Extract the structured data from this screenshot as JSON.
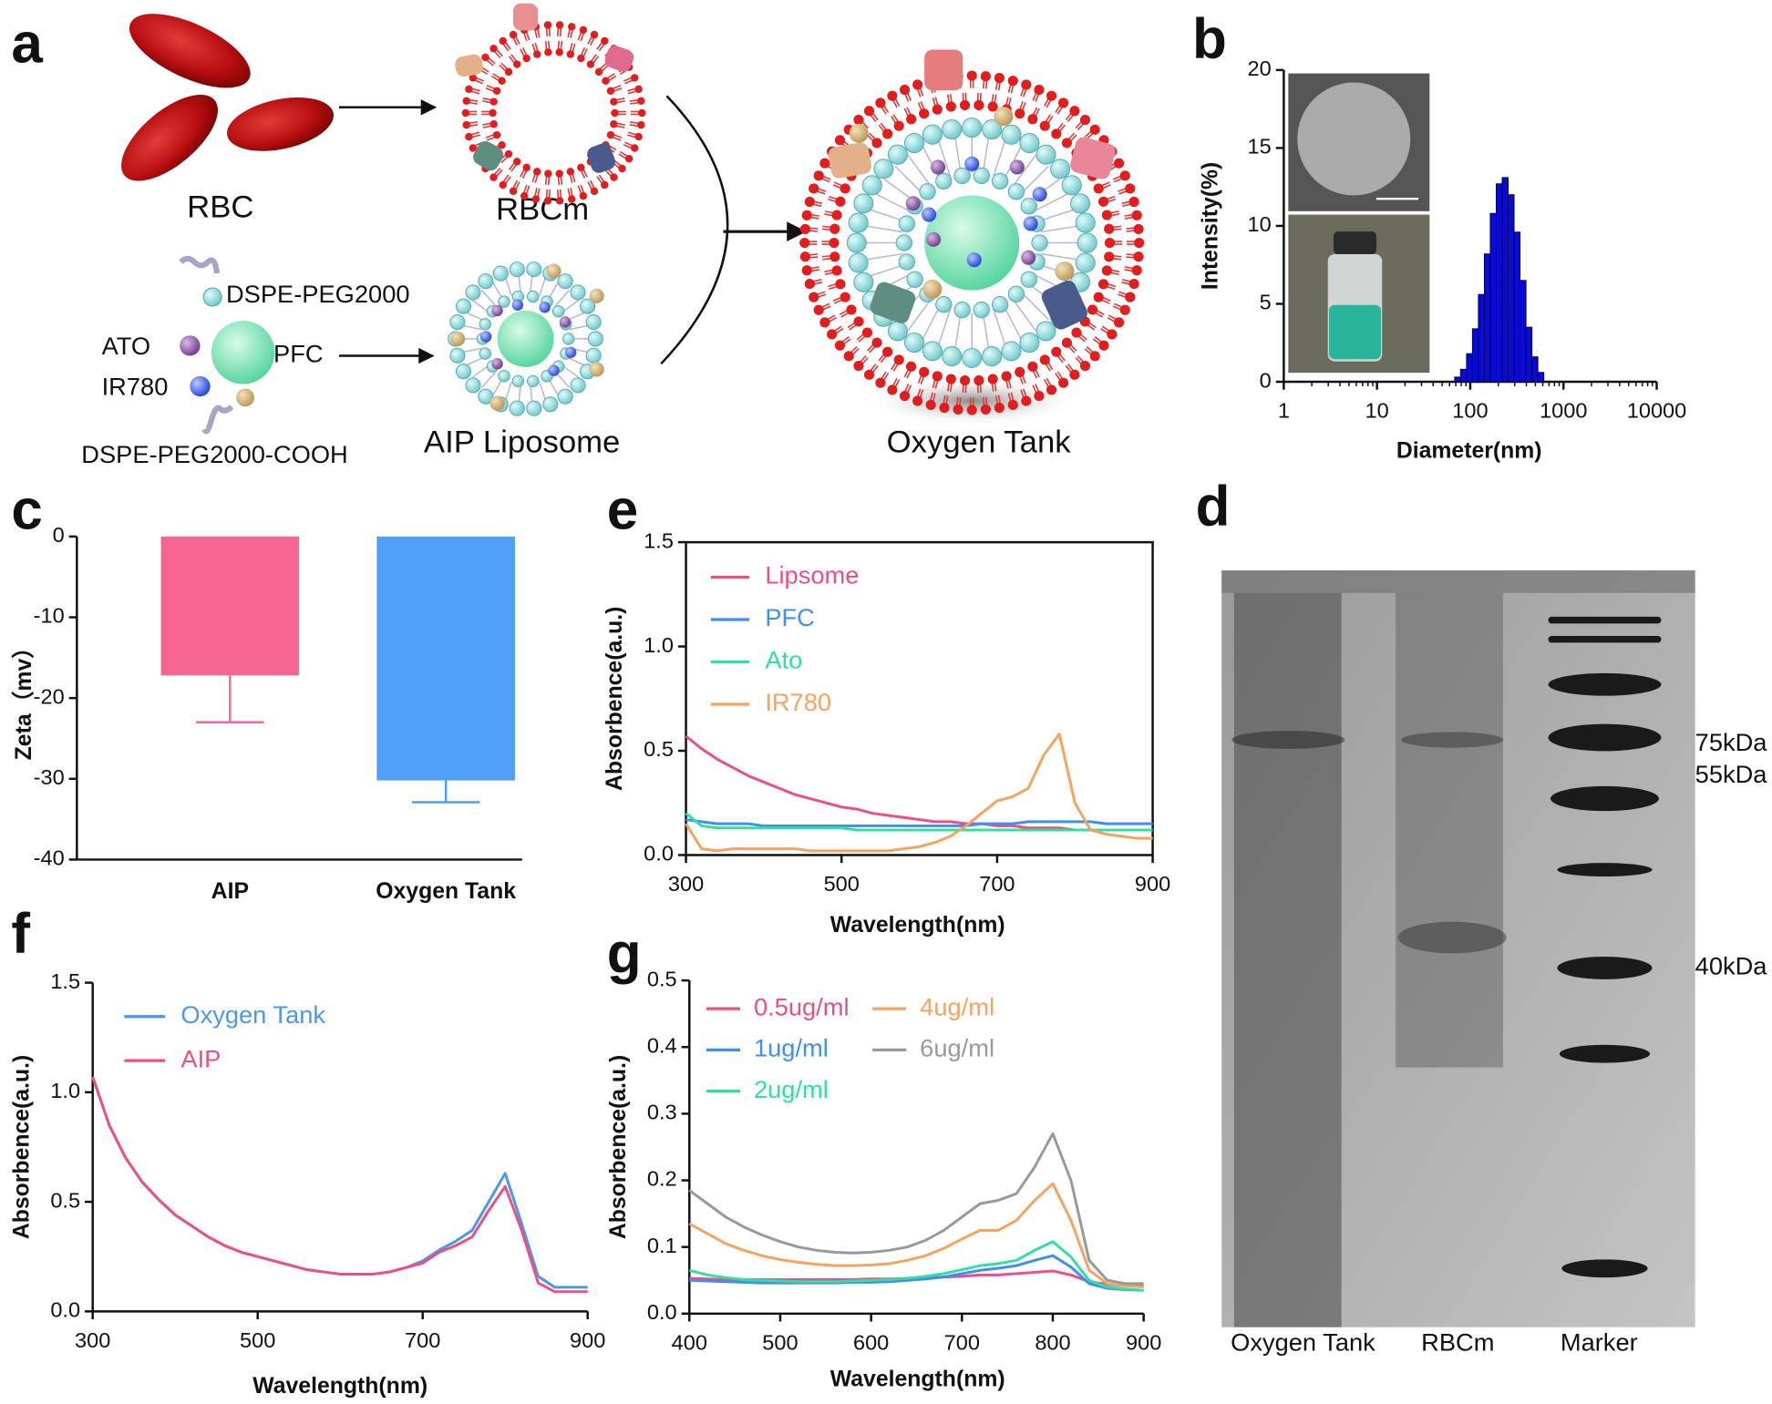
{
  "diagram": {
    "panel": "a",
    "rbc": "RBC",
    "rbcm": "RBCm",
    "dspe": "DSPE-PEG2000",
    "ato": "ATO",
    "pfc": "PFC",
    "ir780": "IR780",
    "dspe_cooh": "DSPE-PEG2000-COOH",
    "liposome": "AIP Liposome",
    "tank": "Oxygen Tank"
  },
  "gel": {
    "panel": "d",
    "markers": [
      "75kDa",
      "55kDa",
      "40kDa"
    ],
    "lanes": [
      "Oxygen Tank",
      "RBCm",
      "Marker"
    ]
  },
  "chart_data": [
    {
      "type": "histogram",
      "panel": "b",
      "xlabel": "Diameter(nm)",
      "ylabel": "Intensity(%)",
      "xscale": "log",
      "bins": [
        68.1,
        78.8,
        91.3,
        105.7,
        122.4,
        141.8,
        164.2,
        190.1,
        220.2,
        255.0,
        295.3,
        342.0,
        396.1,
        458.7,
        531.2,
        615.2
      ],
      "values": [
        0.3,
        0.8,
        1.8,
        3.4,
        5.6,
        8.2,
        10.8,
        12.7,
        13.1,
        12.0,
        9.6,
        6.5,
        3.5,
        1.6,
        0.6
      ],
      "color": "#0a0ad2",
      "xlim": [
        1,
        10000
      ],
      "xticks": [
        1,
        10,
        100,
        1000,
        10000
      ],
      "ylim": [
        0,
        20
      ],
      "yticks": [
        0,
        5,
        10,
        15,
        20
      ]
    },
    {
      "type": "bar",
      "panel": "c",
      "ylabel": "Zeta（mv）",
      "categories": [
        "AIP",
        "Oxygen Tank"
      ],
      "values": [
        -17.2,
        -30.2
      ],
      "errors": [
        5.8,
        2.7
      ],
      "colors": [
        "#f76592",
        "#4f9ef8"
      ],
      "ylim": [
        -40,
        0
      ],
      "yticks": [
        0,
        -10,
        -20,
        -30,
        -40
      ]
    },
    {
      "type": "line",
      "panel": "e",
      "xlabel": "Wavelength(nm)",
      "ylabel": "Absorbence(a.u.)",
      "legend": "upper left",
      "x": [
        300,
        320,
        340,
        360,
        380,
        400,
        420,
        440,
        460,
        480,
        500,
        520,
        540,
        560,
        580,
        600,
        620,
        640,
        660,
        680,
        700,
        720,
        740,
        760,
        780,
        800,
        820,
        840,
        860,
        880,
        900
      ],
      "series": [
        {
          "name": "Lipsome",
          "color": "#ec4f86",
          "values": [
            0.57,
            0.51,
            0.46,
            0.42,
            0.38,
            0.35,
            0.32,
            0.29,
            0.27,
            0.25,
            0.23,
            0.22,
            0.2,
            0.19,
            0.18,
            0.17,
            0.16,
            0.16,
            0.15,
            0.15,
            0.14,
            0.14,
            0.13,
            0.13,
            0.13,
            0.12,
            0.12,
            0.12,
            0.12,
            0.12,
            0.12
          ]
        },
        {
          "name": "PFC",
          "color": "#3f8ff0",
          "values": [
            0.17,
            0.16,
            0.15,
            0.15,
            0.15,
            0.14,
            0.14,
            0.14,
            0.14,
            0.14,
            0.14,
            0.14,
            0.14,
            0.14,
            0.14,
            0.14,
            0.14,
            0.14,
            0.14,
            0.15,
            0.15,
            0.15,
            0.16,
            0.16,
            0.16,
            0.16,
            0.16,
            0.15,
            0.15,
            0.15,
            0.15
          ]
        },
        {
          "name": "Ato",
          "color": "#2fe0a0",
          "values": [
            0.2,
            0.14,
            0.13,
            0.13,
            0.13,
            0.13,
            0.13,
            0.13,
            0.13,
            0.13,
            0.13,
            0.12,
            0.12,
            0.12,
            0.12,
            0.12,
            0.12,
            0.12,
            0.12,
            0.12,
            0.12,
            0.12,
            0.12,
            0.12,
            0.12,
            0.12,
            0.12,
            0.12,
            0.12,
            0.12,
            0.12
          ]
        },
        {
          "name": "IR780",
          "color": "#f5a35f",
          "values": [
            0.15,
            0.03,
            0.02,
            0.03,
            0.03,
            0.03,
            0.03,
            0.03,
            0.02,
            0.02,
            0.02,
            0.02,
            0.02,
            0.02,
            0.03,
            0.04,
            0.06,
            0.09,
            0.14,
            0.2,
            0.26,
            0.28,
            0.32,
            0.48,
            0.58,
            0.25,
            0.12,
            0.1,
            0.09,
            0.08,
            0.08
          ]
        }
      ],
      "xlim": [
        300,
        900
      ],
      "xticks": [
        300,
        500,
        700,
        900
      ],
      "ylim": [
        0,
        1.5
      ],
      "yticks": [
        {
          "value": 0,
          "label": "0.0"
        },
        0.5,
        {
          "value": 1,
          "label": "1.0"
        },
        1.5
      ]
    },
    {
      "type": "line",
      "panel": "f",
      "xlabel": "Wavelength(nm)",
      "ylabel": "Absorbence(a.u.)",
      "legend": "upper left",
      "x": [
        300,
        320,
        340,
        360,
        380,
        400,
        420,
        440,
        460,
        480,
        500,
        520,
        540,
        560,
        580,
        600,
        620,
        640,
        660,
        680,
        700,
        720,
        740,
        760,
        780,
        800,
        820,
        840,
        860,
        880,
        900
      ],
      "series": [
        {
          "name": "Oxygen Tank",
          "color": "#4a97ee",
          "values": [
            1.07,
            0.85,
            0.7,
            0.59,
            0.51,
            0.44,
            0.39,
            0.34,
            0.3,
            0.27,
            0.25,
            0.23,
            0.21,
            0.19,
            0.18,
            0.17,
            0.17,
            0.17,
            0.18,
            0.2,
            0.23,
            0.28,
            0.32,
            0.37,
            0.5,
            0.63,
            0.4,
            0.16,
            0.11,
            0.11,
            0.11
          ]
        },
        {
          "name": "AIP",
          "color": "#ec4f86",
          "values": [
            1.07,
            0.85,
            0.7,
            0.59,
            0.51,
            0.44,
            0.39,
            0.34,
            0.3,
            0.27,
            0.25,
            0.23,
            0.21,
            0.19,
            0.18,
            0.17,
            0.17,
            0.17,
            0.18,
            0.2,
            0.22,
            0.27,
            0.3,
            0.34,
            0.46,
            0.57,
            0.37,
            0.13,
            0.09,
            0.09,
            0.09
          ]
        }
      ],
      "xlim": [
        300,
        900
      ],
      "xticks": [
        300,
        500,
        700,
        900
      ],
      "ylim": [
        0,
        1.5
      ],
      "yticks": [
        {
          "value": 0,
          "label": "0.0"
        },
        0.5,
        {
          "value": 1,
          "label": "1.0"
        },
        1.5
      ]
    },
    {
      "type": "line",
      "panel": "g",
      "xlabel": "Wavelength(nm)",
      "ylabel": "Absorbence(a.u.)",
      "legend": "upper left",
      "x": [
        400,
        420,
        440,
        460,
        480,
        500,
        520,
        540,
        560,
        580,
        600,
        620,
        640,
        660,
        680,
        700,
        720,
        740,
        760,
        780,
        800,
        820,
        840,
        860,
        880,
        900
      ],
      "series": [
        {
          "name": "0.5ug/ml",
          "color": "#ec4f86",
          "values": [
            0.053,
            0.052,
            0.051,
            0.051,
            0.051,
            0.051,
            0.051,
            0.051,
            0.051,
            0.051,
            0.052,
            0.052,
            0.053,
            0.054,
            0.055,
            0.056,
            0.058,
            0.058,
            0.06,
            0.062,
            0.064,
            0.058,
            0.048,
            0.044,
            0.042,
            0.042
          ]
        },
        {
          "name": "1ug/ml",
          "color": "#3f8ff0",
          "values": [
            0.05,
            0.049,
            0.048,
            0.047,
            0.046,
            0.046,
            0.046,
            0.046,
            0.046,
            0.047,
            0.047,
            0.048,
            0.05,
            0.052,
            0.055,
            0.06,
            0.065,
            0.068,
            0.072,
            0.08,
            0.087,
            0.07,
            0.045,
            0.038,
            0.036,
            0.035
          ]
        },
        {
          "name": "2ug/ml",
          "color": "#2fe0a0",
          "values": [
            0.065,
            0.058,
            0.054,
            0.051,
            0.05,
            0.049,
            0.048,
            0.048,
            0.048,
            0.049,
            0.05,
            0.051,
            0.053,
            0.056,
            0.06,
            0.066,
            0.072,
            0.075,
            0.08,
            0.095,
            0.108,
            0.085,
            0.05,
            0.04,
            0.037,
            0.035
          ]
        },
        {
          "name": "4ug/ml",
          "color": "#f5a35f",
          "values": [
            0.135,
            0.12,
            0.105,
            0.095,
            0.087,
            0.081,
            0.077,
            0.074,
            0.072,
            0.072,
            0.073,
            0.075,
            0.08,
            0.087,
            0.098,
            0.112,
            0.125,
            0.125,
            0.14,
            0.17,
            0.195,
            0.14,
            0.065,
            0.045,
            0.042,
            0.04
          ]
        },
        {
          "name": "6ug/ml",
          "color": "#999999",
          "values": [
            0.185,
            0.165,
            0.145,
            0.13,
            0.118,
            0.108,
            0.1,
            0.095,
            0.092,
            0.091,
            0.092,
            0.095,
            0.1,
            0.11,
            0.125,
            0.145,
            0.165,
            0.17,
            0.18,
            0.22,
            0.27,
            0.2,
            0.08,
            0.05,
            0.045,
            0.045
          ]
        }
      ],
      "xlim": [
        400,
        900
      ],
      "xticks": [
        400,
        500,
        600,
        700,
        800,
        900
      ],
      "ylim": [
        0,
        0.5
      ],
      "yticks": [
        {
          "value": 0,
          "label": "0.0"
        },
        0.1,
        0.2,
        0.3,
        0.4,
        0.5
      ]
    }
  ]
}
